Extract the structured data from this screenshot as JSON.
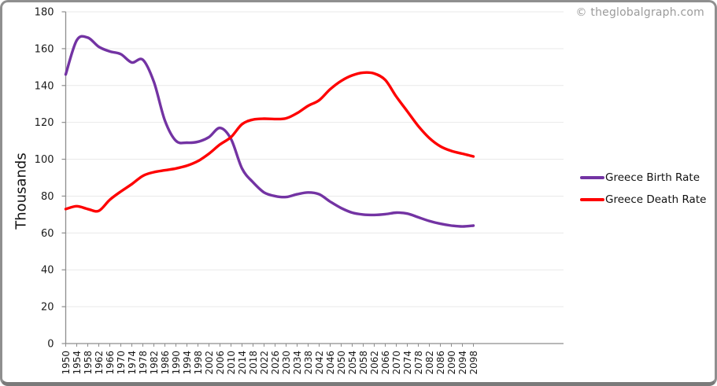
{
  "watermark": "© theglobalgraph.com",
  "y_axis": {
    "title": "Thousands",
    "ticks": [
      0,
      20,
      40,
      60,
      80,
      100,
      120,
      140,
      160,
      180
    ]
  },
  "legend": [
    {
      "label": "Greece Birth Rate",
      "color": "#7333A3"
    },
    {
      "label": "Greece Death Rate",
      "color": "#FE0000"
    }
  ],
  "theme": {
    "grid_color": "#E9E9E9",
    "axis_color": "#8E8E8E",
    "tick_label_color": "#1a1a1a",
    "birth_color": "#7333A3",
    "death_color": "#FE0000"
  },
  "chart_data": {
    "type": "line",
    "title": "",
    "xlabel": "",
    "ylabel": "Thousands",
    "ylim": [
      0,
      180
    ],
    "grid": true,
    "legend_position": "right",
    "x": [
      1950,
      1954,
      1958,
      1962,
      1966,
      1970,
      1974,
      1978,
      1982,
      1986,
      1990,
      1994,
      1998,
      2002,
      2006,
      2010,
      2014,
      2018,
      2022,
      2026,
      2030,
      2034,
      2038,
      2042,
      2046,
      2050,
      2054,
      2058,
      2062,
      2066,
      2070,
      2074,
      2078,
      2082,
      2086,
      2090,
      2094,
      2098
    ],
    "series": [
      {
        "name": "Greece Birth Rate",
        "values": [
          146,
          164.5,
          166,
          161,
          158.5,
          157,
          152.5,
          154,
          142,
          121,
          110,
          109,
          109.5,
          112,
          117,
          111,
          95,
          87.5,
          82,
          80,
          79.5,
          81,
          82,
          81,
          77,
          73.5,
          71,
          70,
          69.8,
          70.2,
          71,
          70.5,
          68.5,
          66.5,
          65,
          64,
          63.5,
          64
        ]
      },
      {
        "name": "Greece Death Rate",
        "values": [
          73,
          74.5,
          73,
          72,
          78,
          82.5,
          86.5,
          91,
          93,
          94,
          95,
          96.5,
          99,
          103,
          108,
          112,
          119,
          121.5,
          122,
          121.8,
          122.2,
          125,
          129,
          132,
          138,
          142.5,
          145.5,
          147,
          146.5,
          143,
          134,
          126,
          118,
          111.5,
          107,
          104.5,
          103,
          101.5
        ]
      }
    ]
  }
}
